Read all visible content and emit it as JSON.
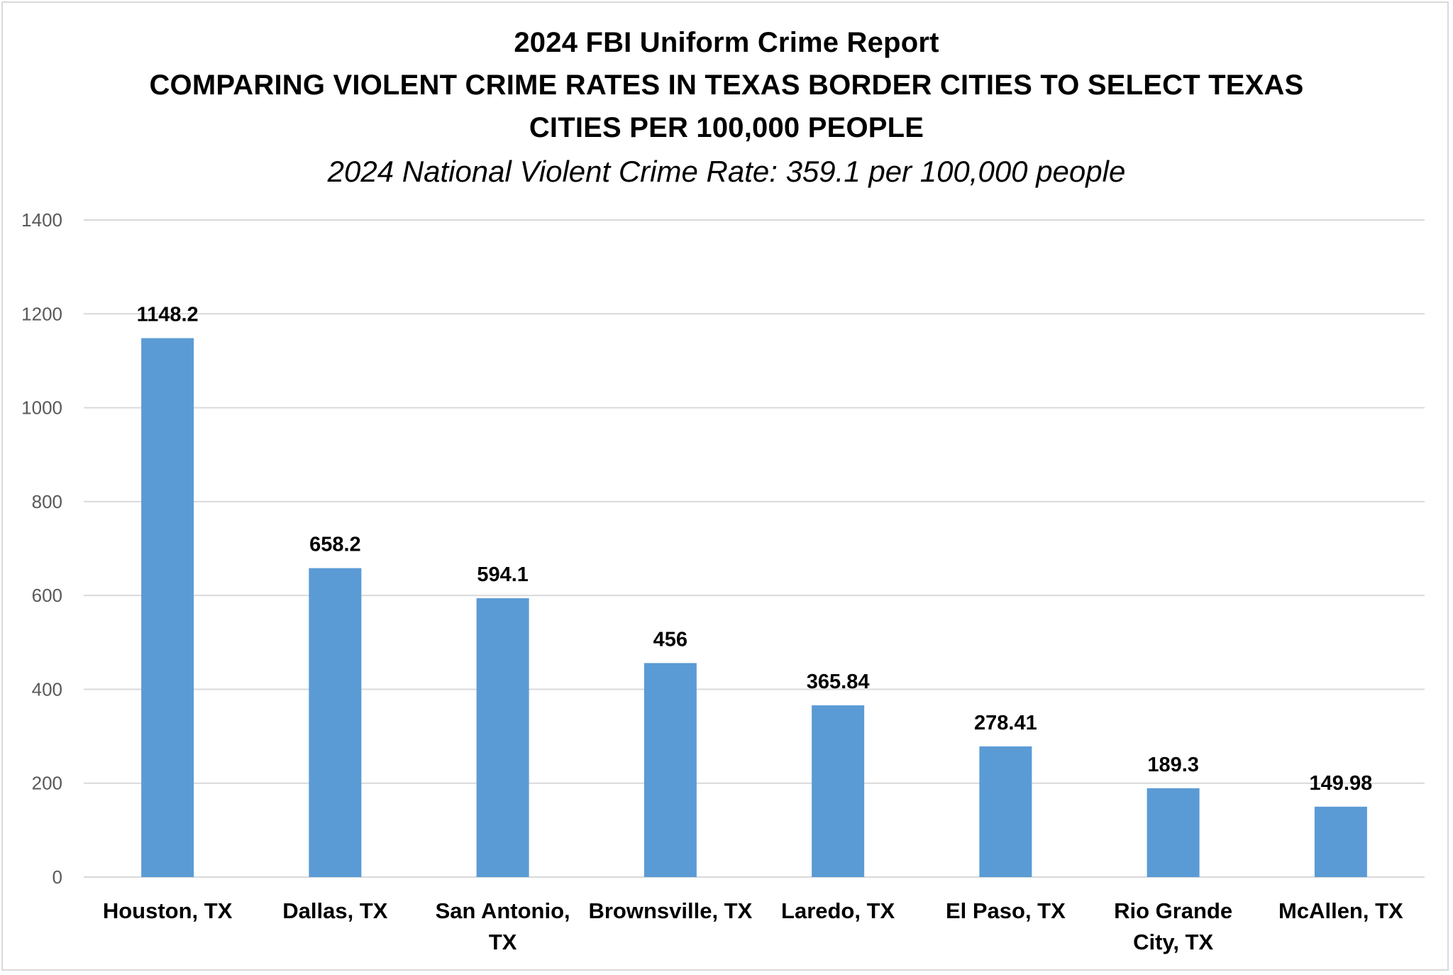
{
  "chart_data": {
    "type": "bar",
    "title_lines": [
      "2024 FBI Uniform Crime Report",
      "COMPARING VIOLENT CRIME RATES IN TEXAS BORDER CITIES TO SELECT TEXAS",
      "CITIES PER 100,000 PEOPLE"
    ],
    "subtitle": "2024 National Violent Crime Rate: 359.1 per 100,000 people",
    "categories": [
      [
        "Houston, TX"
      ],
      [
        "Dallas, TX"
      ],
      [
        "San Antonio,",
        "TX"
      ],
      [
        "Brownsville, TX"
      ],
      [
        "Laredo, TX"
      ],
      [
        "El Paso, TX"
      ],
      [
        "Rio Grande",
        "City, TX"
      ],
      [
        "McAllen, TX"
      ]
    ],
    "values": [
      1148.2,
      658.2,
      594.1,
      456,
      365.84,
      278.41,
      189.3,
      149.98
    ],
    "data_labels": [
      "1148.2",
      "658.2",
      "594.1",
      "456",
      "365.84",
      "278.41",
      "189.3",
      "149.98"
    ],
    "yticks": [
      0,
      200,
      400,
      600,
      800,
      1000,
      1200,
      1400
    ],
    "ylim": [
      0,
      1400
    ],
    "grid": true,
    "legend": "none",
    "colors": {
      "bar": "#5b9bd5",
      "grid": "#d9d9d9",
      "axis_text": "#595959"
    }
  }
}
